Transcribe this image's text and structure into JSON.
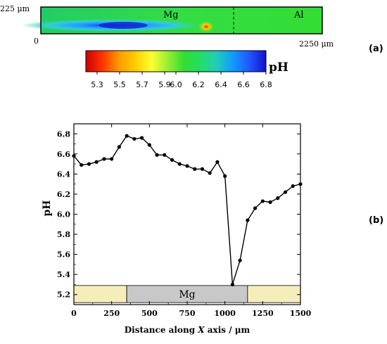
{
  "panel_a": {
    "y_top_label": "225 μm",
    "x_start_label": "0",
    "x_end_label": "2250 μm",
    "region_left": "Mg",
    "region_right": "Al",
    "panel_label": "(a)",
    "colorbar": {
      "title": "pH",
      "min": 5.2,
      "max": 6.8,
      "ticks": [
        "5.3",
        "5.5",
        "5.7",
        "5.9",
        "6.0",
        "6.2",
        "6.4",
        "6.6",
        "6.8"
      ],
      "colors": [
        "#cc0000",
        "#ff3300",
        "#ff9900",
        "#ffcc00",
        "#ffff33",
        "#99ee33",
        "#33dd33",
        "#22dd66",
        "#22ccbb",
        "#1199ff",
        "#2255ff",
        "#1111cc"
      ]
    }
  },
  "chart_data": {
    "type": "line",
    "panel_label": "(b)",
    "xlabel_prefix": "Distance along ",
    "xlabel_var": "X",
    "xlabel_suffix": " axis / μm",
    "ylabel": "pH",
    "xlim": [
      0,
      1500
    ],
    "ylim": [
      5.1,
      6.9
    ],
    "x_ticks": [
      0,
      250,
      500,
      750,
      1000,
      1250,
      1500
    ],
    "y_ticks": [
      "5.2",
      "5.4",
      "5.6",
      "5.8",
      "6.0",
      "6.2",
      "6.4",
      "6.6",
      "6.8"
    ],
    "bands": [
      {
        "label": "",
        "start": 0,
        "end": 350,
        "color": "#f5eebb"
      },
      {
        "label": "Mg",
        "start": 350,
        "end": 1150,
        "color": "#c8c8c8"
      },
      {
        "label": "",
        "start": 1150,
        "end": 1500,
        "color": "#f5eebb"
      }
    ],
    "band_range": [
      5.12,
      5.29
    ],
    "series": [
      {
        "x": [
          0,
          50,
          100,
          150,
          200,
          250,
          300,
          350,
          400,
          450,
          500,
          550,
          600,
          650,
          700,
          750,
          800,
          850,
          900,
          950,
          1000,
          1050,
          1100,
          1150,
          1200,
          1250,
          1300,
          1350,
          1400,
          1450,
          1500
        ],
        "y": [
          6.58,
          6.49,
          6.5,
          6.52,
          6.55,
          6.55,
          6.67,
          6.78,
          6.75,
          6.76,
          6.69,
          6.59,
          6.59,
          6.54,
          6.5,
          6.48,
          6.45,
          6.45,
          6.41,
          6.52,
          6.38,
          5.3,
          5.54,
          5.94,
          6.06,
          6.13,
          6.12,
          6.16,
          6.22,
          6.28,
          6.3
        ],
        "color": "#000000"
      }
    ]
  }
}
